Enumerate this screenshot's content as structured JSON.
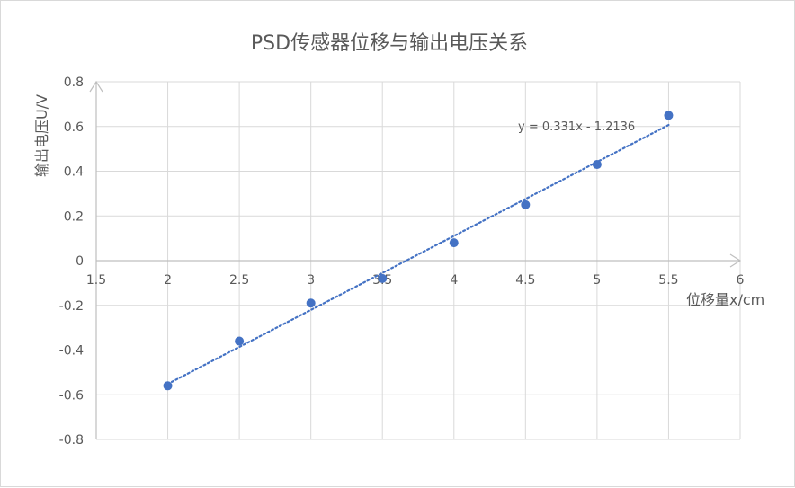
{
  "chart_data": {
    "type": "scatter",
    "title": "PSD传感器位移与输出电压关系",
    "xlabel": "位移量x/cm",
    "ylabel": "输出电压U/V",
    "xlim": [
      1.5,
      6
    ],
    "ylim": [
      -0.8,
      0.8
    ],
    "x_ticks": [
      "1.5",
      "2",
      "2.5",
      "3",
      "3.5",
      "4",
      "4.5",
      "5",
      "5.5",
      "6"
    ],
    "y_ticks": [
      "-0.8",
      "-0.6",
      "-0.4",
      "-0.2",
      "0",
      "0.2",
      "0.4",
      "0.6",
      "0.8"
    ],
    "grid": true,
    "legend": "none",
    "series": [
      {
        "x": [
          2,
          2.5,
          3,
          3.5,
          4,
          4.5,
          5,
          5.5
        ],
        "y": [
          -0.56,
          -0.36,
          -0.19,
          -0.08,
          0.08,
          0.25,
          0.43,
          0.65
        ]
      }
    ],
    "trendline": {
      "slope": 0.331,
      "intercept": -1.2136,
      "x_range": [
        2,
        5.5
      ],
      "equation": "y = 0.331x - 1.2136"
    },
    "colors": {
      "marker": "#4472c4",
      "trendline": "#4472c4",
      "grid": "#d9d9d9",
      "text": "#595959"
    }
  }
}
